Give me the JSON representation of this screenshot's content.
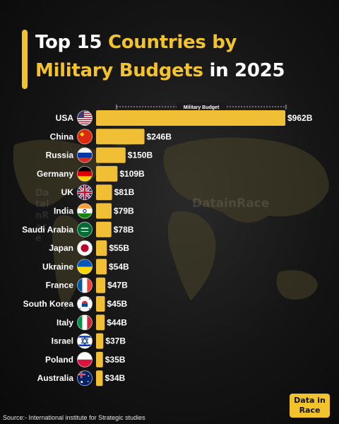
{
  "title": {
    "part1": "Top 15 ",
    "highlight1": "Countries by",
    "highlight2": "Military Budgets",
    "part2": " in 2025"
  },
  "legend_label": "Military Budget",
  "watermark": "DatainRace",
  "source": "Source:- International institute for Strategic studies",
  "brand": {
    "line1": "Data in",
    "line2": "Race"
  },
  "colors": {
    "accent": "#f2c32b",
    "bar": "#f0bf36",
    "background": "#141414"
  },
  "chart_data": {
    "type": "bar",
    "orientation": "horizontal",
    "categories": [
      "USA",
      "China",
      "Russia",
      "Germany",
      "UK",
      "India",
      "Saudi Arabia",
      "Japan",
      "Ukraine",
      "France",
      "South Korea",
      "Italy",
      "Israel",
      "Poland",
      "Australia"
    ],
    "values": [
      962,
      246,
      150,
      109,
      81,
      79,
      78,
      55,
      54,
      47,
      45,
      44,
      37,
      35,
      34
    ],
    "value_labels": [
      "$962B",
      "$246B",
      "$150B",
      "$109B",
      "$81B",
      "$79B",
      "$78B",
      "$55B",
      "$54B",
      "$47B",
      "$45B",
      "$44B",
      "$37B",
      "$35B",
      "$34B"
    ],
    "flags": [
      "usa-flag",
      "china-flag",
      "russia-flag",
      "germany-flag",
      "uk-flag",
      "india-flag",
      "saudi-arabia-flag",
      "japan-flag",
      "ukraine-flag",
      "france-flag",
      "south-korea-flag",
      "italy-flag",
      "israel-flag",
      "poland-flag",
      "australia-flag"
    ],
    "unit": "USD billions",
    "grid": false
  }
}
